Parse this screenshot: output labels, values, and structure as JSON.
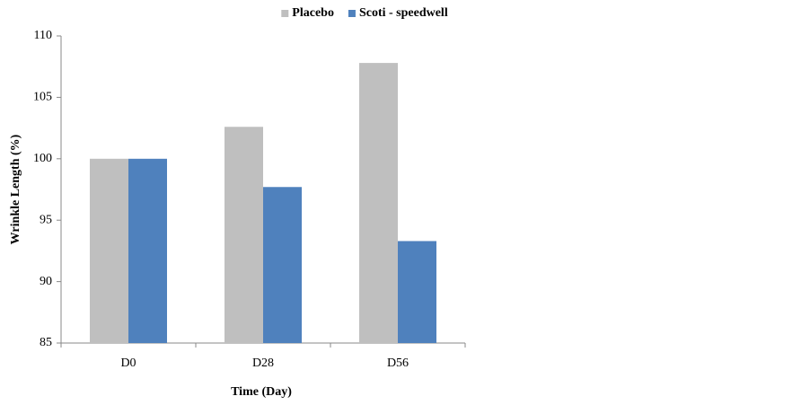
{
  "chart_data": {
    "type": "bar",
    "x_label": "Time (Day)",
    "y_label": "Wrinkle Length (%)",
    "categories": [
      "D0",
      "D28",
      "D56"
    ],
    "series": [
      {
        "name": "Placebo",
        "color": "#bfbfbf",
        "values": [
          100,
          102.6,
          107.8
        ]
      },
      {
        "name": "Scoti - speedwell",
        "color": "#4f81bd",
        "values": [
          100,
          97.7,
          93.3
        ]
      }
    ],
    "ylim": [
      85,
      110
    ],
    "yticks": [
      85,
      90,
      95,
      100,
      105,
      110
    ],
    "grid": false,
    "legend": "top"
  }
}
